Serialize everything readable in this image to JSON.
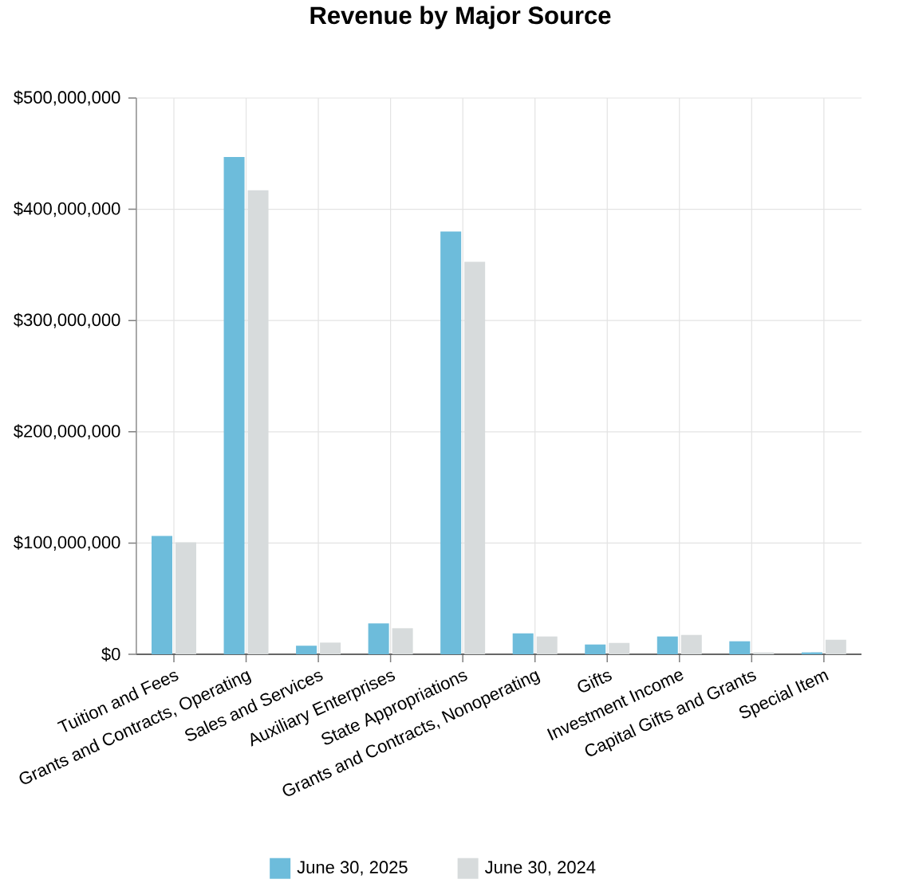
{
  "chart_data": {
    "type": "bar",
    "title": "Revenue by Major Source",
    "categories": [
      "Tuition and Fees",
      "Grants and Contracts, Operating",
      "Sales and Services",
      "Auxiliary Enterprises",
      "State Appropriations",
      "Grants and Contracts, Nonoperating",
      "Gifts",
      "Investment Income",
      "Capital Gifts and Grants",
      "Special Item"
    ],
    "series": [
      {
        "name": "June 30, 2025",
        "color": "#6dbcdb",
        "values": [
          106400000,
          447000000,
          7700000,
          27700000,
          380000000,
          18800000,
          8800000,
          16000000,
          11700000,
          1700000
        ]
      },
      {
        "name": "June 30, 2024",
        "color": "#d7dbdc",
        "values": [
          100700000,
          417000000,
          10500000,
          23400000,
          352700000,
          16000000,
          10200000,
          17400000,
          1700000,
          13100000
        ]
      }
    ],
    "ylim": [
      0,
      500000000
    ],
    "yticks": [
      {
        "value": 0,
        "label": "$0"
      },
      {
        "value": 100000000,
        "label": "$100,000,000"
      },
      {
        "value": 200000000,
        "label": "$200,000,000"
      },
      {
        "value": 300000000,
        "label": "$300,000,000"
      },
      {
        "value": 400000000,
        "label": "$400,000,000"
      },
      {
        "value": 500000000,
        "label": "$500,000,000"
      }
    ],
    "grid": true,
    "legend": "bottom"
  }
}
